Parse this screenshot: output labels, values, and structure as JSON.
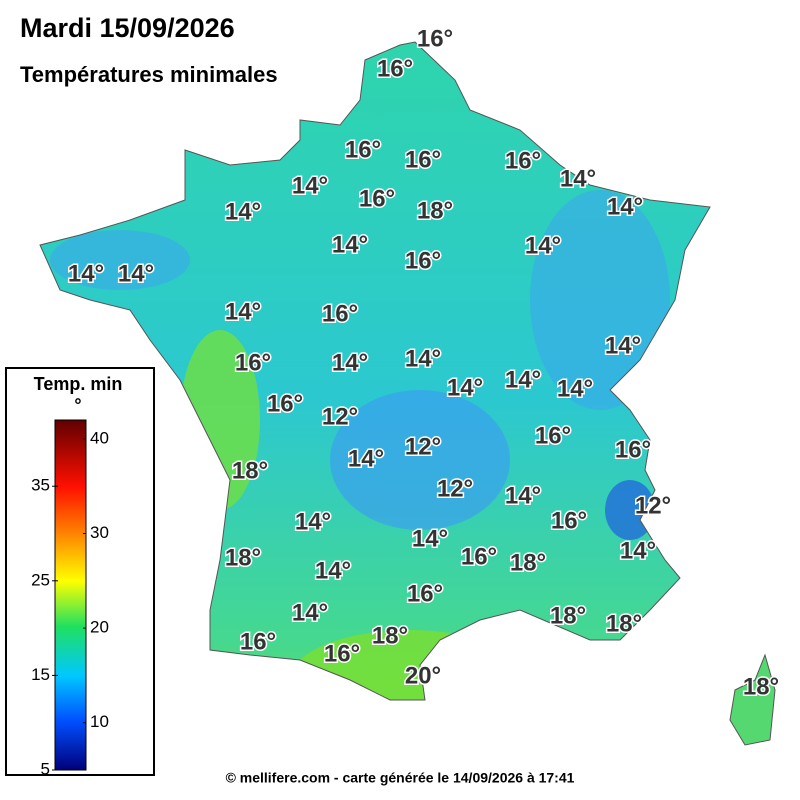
{
  "header": {
    "title": "Mardi 15/09/2026",
    "subtitle": "Températures minimales"
  },
  "labels": [
    "16°",
    "16°",
    "16°",
    "16°",
    "16°",
    "14°",
    "14°",
    "16°",
    "18°",
    "14°",
    "14°",
    "14°",
    "14°",
    "16°",
    "14°",
    "14°",
    "14°",
    "16°",
    "14°",
    "16°",
    "14°",
    "14°",
    "14°",
    "14°",
    "14°",
    "16°",
    "12°",
    "16°",
    "16°",
    "12°",
    "14°",
    "18°",
    "12°",
    "14°",
    "12°",
    "16°",
    "14°",
    "14°",
    "14°",
    "18°",
    "16°",
    "18°",
    "14°",
    "16°",
    "14°",
    "18°",
    "18°",
    "18°",
    "16°",
    "16°",
    "20°",
    "18°"
  ],
  "legend": {
    "title": "Temp. min °",
    "lim": [
      5,
      42
    ],
    "ticks": [
      5,
      10,
      15,
      20,
      25,
      30,
      35,
      40
    ]
  },
  "footer": "© mellifere.com - carte générée le 14/09/2026 à 17:41"
}
